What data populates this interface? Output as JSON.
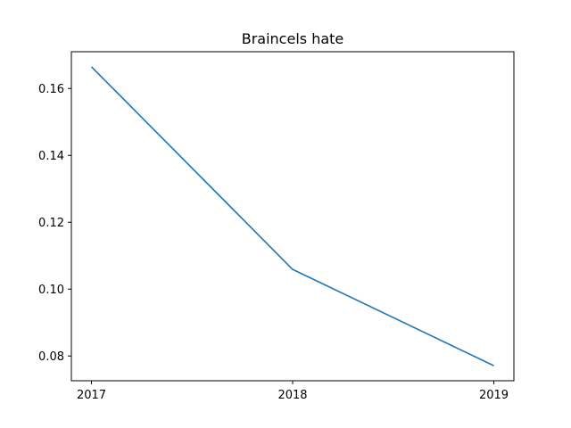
{
  "chart_data": {
    "type": "line",
    "title": "Braincels hate",
    "xlabel": "",
    "ylabel": "",
    "categories": [
      "2017",
      "2018",
      "2019"
    ],
    "series": [
      {
        "values": [
          0.1665,
          0.1059,
          0.0771
        ],
        "color": "#1f77b4"
      }
    ],
    "ylim": [
      0.0726,
      0.171
    ],
    "yticks": [
      0.08,
      0.1,
      0.12,
      0.14,
      0.16
    ],
    "ytick_labels": [
      "0.08",
      "0.10",
      "0.12",
      "0.14",
      "0.16"
    ],
    "grid": false,
    "legend": "none"
  }
}
